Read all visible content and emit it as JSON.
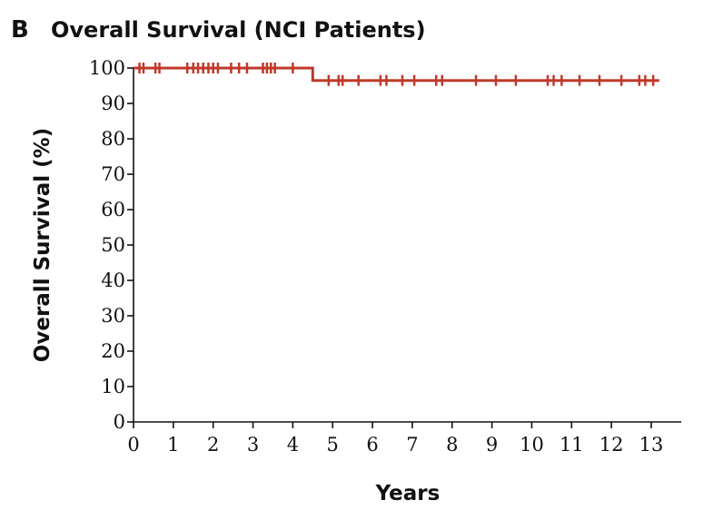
{
  "panel_letter": "B",
  "chart_data": {
    "type": "line",
    "title": "Overall Survival (NCI Patients)",
    "xlabel": "Years",
    "ylabel": "Overall Survival (%)",
    "xlim": [
      0,
      13
    ],
    "ylim": [
      0,
      100
    ],
    "x_ticks": [
      0,
      1,
      2,
      3,
      4,
      5,
      6,
      7,
      8,
      9,
      10,
      11,
      12,
      13
    ],
    "y_ticks": [
      0,
      10,
      20,
      30,
      40,
      50,
      60,
      70,
      80,
      90,
      100
    ],
    "grid": false,
    "legend": "none",
    "series": [
      {
        "color": "#c0392b",
        "step_x": [
          0,
          4.5,
          4.5,
          13.2
        ],
        "step_y": [
          100,
          100,
          96.5,
          96.5
        ],
        "censored": [
          {
            "x": 0.15,
            "y": 100
          },
          {
            "x": 0.25,
            "y": 100
          },
          {
            "x": 0.55,
            "y": 100
          },
          {
            "x": 0.65,
            "y": 100
          },
          {
            "x": 1.35,
            "y": 100
          },
          {
            "x": 1.5,
            "y": 100
          },
          {
            "x": 1.62,
            "y": 100
          },
          {
            "x": 1.75,
            "y": 100
          },
          {
            "x": 1.88,
            "y": 100
          },
          {
            "x": 2.0,
            "y": 100
          },
          {
            "x": 2.12,
            "y": 100
          },
          {
            "x": 2.45,
            "y": 100
          },
          {
            "x": 2.65,
            "y": 100
          },
          {
            "x": 2.85,
            "y": 100
          },
          {
            "x": 3.25,
            "y": 100
          },
          {
            "x": 3.35,
            "y": 100
          },
          {
            "x": 3.45,
            "y": 100
          },
          {
            "x": 3.55,
            "y": 100
          },
          {
            "x": 4.0,
            "y": 100
          },
          {
            "x": 4.9,
            "y": 96.5
          },
          {
            "x": 5.15,
            "y": 96.5
          },
          {
            "x": 5.25,
            "y": 96.5
          },
          {
            "x": 5.65,
            "y": 96.5
          },
          {
            "x": 6.2,
            "y": 96.5
          },
          {
            "x": 6.35,
            "y": 96.5
          },
          {
            "x": 6.75,
            "y": 96.5
          },
          {
            "x": 7.05,
            "y": 96.5
          },
          {
            "x": 7.6,
            "y": 96.5
          },
          {
            "x": 7.75,
            "y": 96.5
          },
          {
            "x": 8.6,
            "y": 96.5
          },
          {
            "x": 9.1,
            "y": 96.5
          },
          {
            "x": 9.6,
            "y": 96.5
          },
          {
            "x": 10.4,
            "y": 96.5
          },
          {
            "x": 10.55,
            "y": 96.5
          },
          {
            "x": 10.75,
            "y": 96.5
          },
          {
            "x": 11.2,
            "y": 96.5
          },
          {
            "x": 11.7,
            "y": 96.5
          },
          {
            "x": 12.25,
            "y": 96.5
          },
          {
            "x": 12.7,
            "y": 96.5
          },
          {
            "x": 12.85,
            "y": 96.5
          },
          {
            "x": 13.05,
            "y": 96.5
          }
        ]
      }
    ]
  }
}
